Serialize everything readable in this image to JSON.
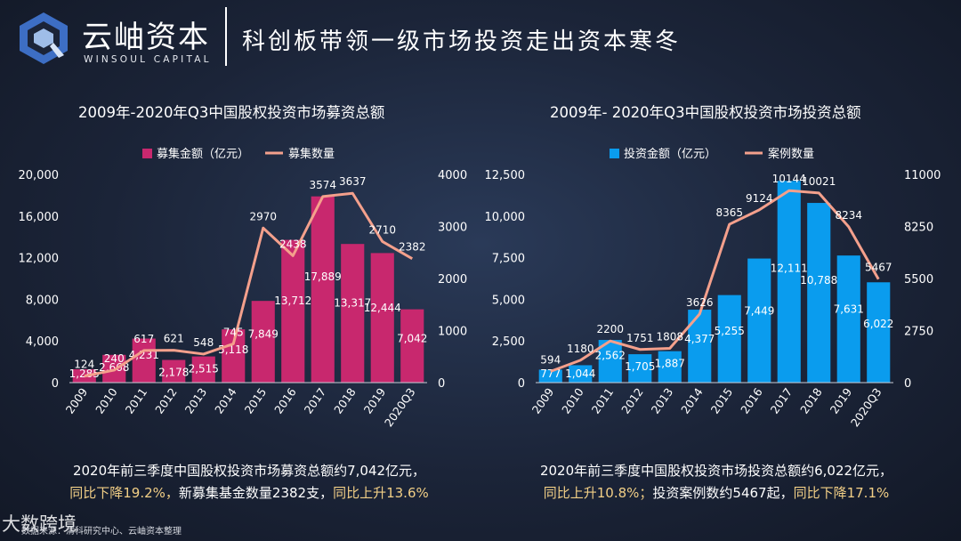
{
  "header": {
    "logo_cn": "云岫资本",
    "logo_en": "WINSOUL CAPITAL",
    "title": "科创板带领一级市场投资走出资本寒冬"
  },
  "chart_data": [
    {
      "type": "bar",
      "title": "2009年-2020年Q3中国股权投资市场募资总额",
      "categories": [
        "2009",
        "2010",
        "2011",
        "2012",
        "2013",
        "2014",
        "2015",
        "2016",
        "2017",
        "2018",
        "2019",
        "2020Q3"
      ],
      "series": [
        {
          "name": "募集金额（亿元）",
          "kind": "bar",
          "axis": "left",
          "color": "#c8286e",
          "values": [
            1285,
            2668,
            4231,
            2178,
            2515,
            5118,
            7849,
            13712,
            17889,
            13317,
            12444,
            7042
          ],
          "labels": [
            "1,285",
            "2,668",
            "4,231",
            "2,178",
            "2,515",
            "5,118",
            "7,849",
            "13,712",
            "17,889",
            "13,317",
            "12,444",
            "7,042"
          ]
        },
        {
          "name": "募集数量",
          "kind": "line",
          "axis": "right",
          "color": "#f4a08c",
          "values": [
            124,
            240,
            617,
            621,
            548,
            745,
            2970,
            2438,
            3574,
            3637,
            2710,
            2382
          ],
          "labels": [
            "124",
            "240",
            "617",
            "621",
            "548",
            "745",
            "2970",
            "2438",
            "3574",
            "3637",
            "2710",
            "2382"
          ]
        }
      ],
      "y_left": {
        "min": 0,
        "max": 20000,
        "ticks": [
          "0",
          "4,000",
          "8,000",
          "12,000",
          "16,000",
          "20,000"
        ]
      },
      "y_right": {
        "min": 0,
        "max": 4000,
        "ticks": [
          "0",
          "1000",
          "2000",
          "3000",
          "4000"
        ]
      },
      "legend_position": "top-center",
      "summary_lines": [
        [
          {
            "text": "2020年前三季度中国股权投资市场募资总额约7,042亿元，",
            "hl": false
          }
        ],
        [
          {
            "text": "同比下降19.2%，",
            "hl": true
          },
          {
            "text": "新募集基金数量2382支，",
            "hl": false
          },
          {
            "text": "同比上升13.6%",
            "hl": true
          }
        ]
      ]
    },
    {
      "type": "bar",
      "title": "2009年- 2020年Q3中国股权投资市场投资总额",
      "categories": [
        "2009",
        "2010",
        "2011",
        "2012",
        "2013",
        "2014",
        "2015",
        "2016",
        "2017",
        "2018",
        "2019",
        "2020Q3"
      ],
      "series": [
        {
          "name": "投资金额（亿元）",
          "kind": "bar",
          "axis": "left",
          "color": "#0a9cee",
          "values": [
            777,
            1044,
            2562,
            1705,
            1887,
            4377,
            5255,
            7449,
            12111,
            10788,
            7631,
            6022
          ],
          "labels": [
            "777",
            "1,044",
            "2,562",
            "1,705",
            "1,887",
            "4,377",
            "5,255",
            "7,449",
            "12,111",
            "10,788",
            "7,631",
            "6,022"
          ]
        },
        {
          "name": "案例数量",
          "kind": "line",
          "axis": "right",
          "color": "#f4a08c",
          "values": [
            594,
            1180,
            2200,
            1751,
            1808,
            3626,
            8365,
            9124,
            10144,
            10021,
            8234,
            5467
          ],
          "labels": [
            "594",
            "1180",
            "2200",
            "1751",
            "1808",
            "3626",
            "8365",
            "9124",
            "10144",
            "10021",
            "8234",
            "5467"
          ]
        }
      ],
      "y_left": {
        "min": 0,
        "max": 12500,
        "ticks": [
          "0",
          "2,500",
          "5,000",
          "7,500",
          "10,000",
          "12,500"
        ]
      },
      "y_right": {
        "min": 0,
        "max": 11000,
        "ticks": [
          "0",
          "2750",
          "5500",
          "8250",
          "11000"
        ]
      },
      "legend_position": "top-center",
      "summary_lines": [
        [
          {
            "text": "2020年前三季度中国股权投资市场投资总额约6,022亿元，",
            "hl": false
          }
        ],
        [
          {
            "text": "同比上升10.8%；",
            "hl": true
          },
          {
            "text": "投资案例数约5467起，",
            "hl": false
          },
          {
            "text": "同比下降17.1%",
            "hl": true
          }
        ]
      ]
    }
  ],
  "footer": {
    "brand": "大数跨境",
    "source": "数据来源：清科研究中心、云岫资本整理"
  }
}
